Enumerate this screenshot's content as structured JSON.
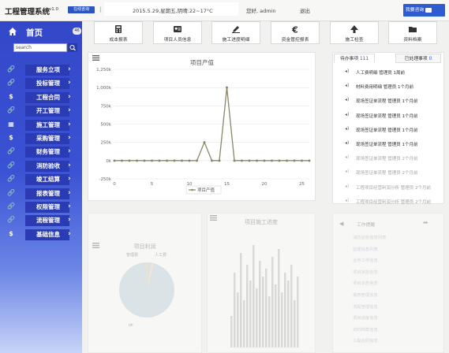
{
  "header": {
    "title": "工程管理系统",
    "version": "v1.0",
    "badge": "在线咨询",
    "separator": "|",
    "date": "2015.5.29,星期五,阴晴:22~17°C",
    "user": "您好, admin",
    "logout": "退出",
    "consult": "我要咨询"
  },
  "sidebar": {
    "home": "首页",
    "home_badge": "46",
    "search_placeholder": "search",
    "items": [
      {
        "label": "服务立项",
        "icon": "link-icon",
        "glyph": "🔗"
      },
      {
        "label": "投标管理",
        "icon": "link-icon",
        "glyph": "🔗"
      },
      {
        "label": "工程合同",
        "icon": "dollar-icon",
        "glyph": "$"
      },
      {
        "label": "开工管理",
        "icon": "link-icon",
        "glyph": "🔗"
      },
      {
        "label": "施工管理",
        "icon": "grid-icon",
        "glyph": "▦"
      },
      {
        "label": "采购管理",
        "icon": "dollar-icon",
        "glyph": "$"
      },
      {
        "label": "财务管理",
        "icon": "link-icon",
        "glyph": "🔗"
      },
      {
        "label": "消防验收",
        "icon": "link-icon",
        "glyph": "🔗"
      },
      {
        "label": "竣工结算",
        "icon": "link-icon",
        "glyph": "🔗"
      },
      {
        "label": "报表管理",
        "icon": "link-icon",
        "glyph": "🔗"
      },
      {
        "label": "权限管理",
        "icon": "link-icon",
        "glyph": "🔗"
      },
      {
        "label": "流程管理",
        "icon": "link-icon",
        "glyph": "🔗"
      },
      {
        "label": "基础信息",
        "icon": "dollar-icon",
        "glyph": "$"
      }
    ]
  },
  "shortcuts": [
    {
      "label": "成本报表",
      "icon": "calculator-icon"
    },
    {
      "label": "项目人员信息",
      "icon": "id-card-icon"
    },
    {
      "label": "施工进度明细",
      "icon": "pencil-icon"
    },
    {
      "label": "资金管控报表",
      "icon": "euro-icon"
    },
    {
      "label": "施工检查",
      "icon": "arrow-up-icon"
    },
    {
      "label": "资料档案",
      "icon": "folder-icon"
    }
  ],
  "chart_data": [
    {
      "type": "line",
      "title": "项目产值",
      "x": [
        0,
        1,
        2,
        3,
        4,
        5,
        6,
        7,
        8,
        9,
        10,
        11,
        12,
        13,
        14,
        15,
        16,
        17,
        18,
        19,
        20,
        21,
        22,
        23,
        24,
        25,
        26
      ],
      "series": [
        {
          "name": "项目产值",
          "values": [
            0,
            0,
            0,
            0,
            0,
            0,
            0,
            0,
            0,
            0,
            0,
            0,
            250000,
            0,
            0,
            1000000,
            0,
            0,
            0,
            0,
            0,
            0,
            0,
            0,
            0,
            0,
            0
          ]
        }
      ],
      "ylim": [
        -250000,
        1250000
      ],
      "yticks": [
        "-250k",
        "0k",
        "250k",
        "500k",
        "750k",
        "1,000k",
        "1,250k"
      ],
      "xticks": [
        "0",
        "5",
        "10",
        "15",
        "20",
        "25"
      ],
      "legend": "bottom",
      "color": "#8a8665"
    },
    {
      "type": "pie",
      "title": "项目利润",
      "labels": [
        "管理费",
        "人工费"
      ],
      "note": "ok"
    },
    {
      "type": "bar",
      "title": "项目施工进度"
    }
  ],
  "tasks": {
    "tab_pending": "待办事项",
    "tab_pending_count": "111",
    "tab_done": "已处理事项",
    "tab_done_count": "0",
    "rows": [
      "人工费明细  管理员  1周前",
      "材料费用明细  管理员  1个月前",
      "现场签证单流程  管理员  1个月前",
      "现场签证单流程  管理员  1个月前",
      "现场签证单流程  管理员  1个月前",
      "现场签证单流程  管理员  1个月前",
      "现场签证单流程  管理员  2个月前",
      "现场签证单流程  管理员  2个月前",
      "工程项目经营利润分析  管理员  2个月前",
      "工程项目经营利润分析  管理员  2个月前"
    ]
  },
  "flow": {
    "title": "工作提醒",
    "rows": [
      "消防验收信息列表",
      "监理信息列表",
      "业务工作信息",
      "项目状态信息",
      "项目状态信息",
      "报表管理信息",
      "流程管理信息",
      "项目进度信息",
      "资料档案信息",
      "工程合同信息"
    ]
  }
}
